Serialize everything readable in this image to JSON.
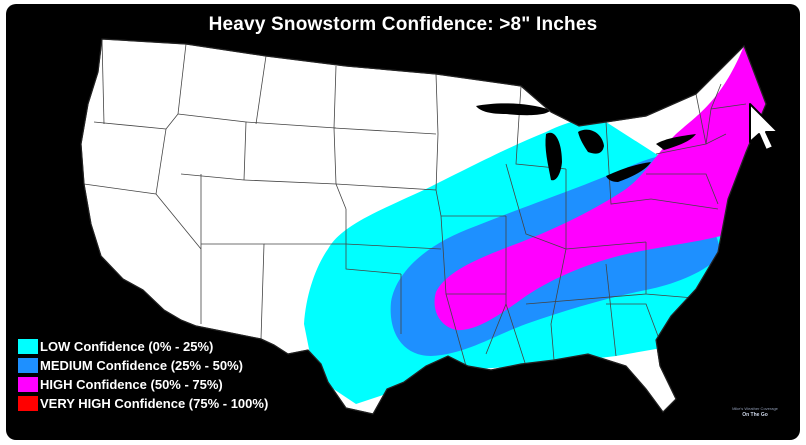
{
  "map": {
    "title": "Heavy Snowstorm Confidence: >8\" Inches",
    "region": "United States",
    "colors": {
      "background": "#000000",
      "land": "#ffffff",
      "borders": "#444444",
      "low": "#00ffff",
      "medium": "#1e90ff",
      "high": "#ff00ff",
      "very_high": "#ff0000"
    }
  },
  "legend": [
    {
      "label": "LOW Confidence (0% - 25%)",
      "color": "#00ffff"
    },
    {
      "label": "MEDIUM Confidence (25% - 50%)",
      "color": "#1e90ff"
    },
    {
      "label": "HIGH Confidence (50% - 75%)",
      "color": "#ff00ff"
    },
    {
      "label": "VERY HIGH Confidence (75% - 100%)",
      "color": "#ff0000"
    }
  ],
  "watermark": {
    "top": "Mike's Weather Coverage",
    "bottom": "On The Go"
  },
  "cursor": {
    "icon": "mouse-pointer-icon"
  }
}
